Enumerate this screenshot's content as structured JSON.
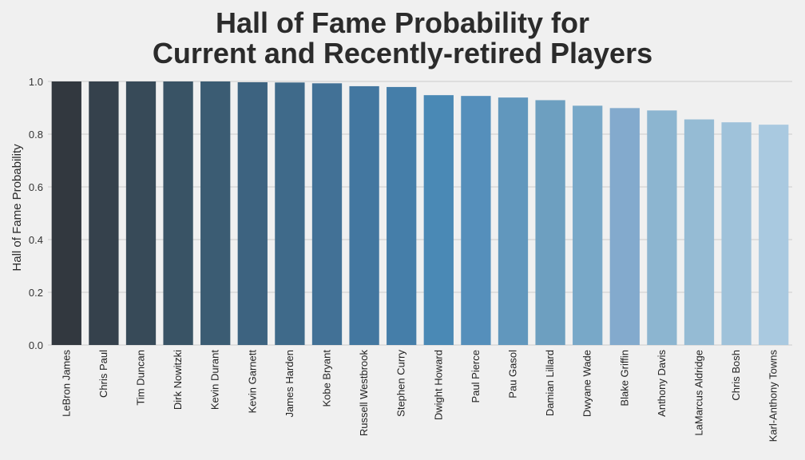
{
  "chart_data": {
    "type": "bar",
    "title_lines": [
      "Hall of Fame Probability for",
      "Current and Recently-retired Players"
    ],
    "xlabel": "",
    "ylabel": "Hall of Fame Probability",
    "ylim": [
      0,
      1.0
    ],
    "yticks": [
      "0.0",
      "0.2",
      "0.4",
      "0.6",
      "0.8",
      "1.0"
    ],
    "ytick_values": [
      0,
      0.2,
      0.4,
      0.6,
      0.8,
      1.0
    ],
    "grid": true,
    "legend": "none",
    "categories": [
      "LeBron James",
      "Chris Paul",
      "Tim Duncan",
      "Dirk Nowitzki",
      "Kevin Durant",
      "Kevin Garnett",
      "James Harden",
      "Kobe Bryant",
      "Russell Westbrook",
      "Stephen Curry",
      "Dwight Howard",
      "Paul Pierce",
      "Pau Gasol",
      "Damian Lillard",
      "Dwyane Wade",
      "Blake Griffin",
      "Anthony Davis",
      "LaMarcus Aldridge",
      "Chris Bosh",
      "Karl-Anthony Towns"
    ],
    "values": [
      1.0,
      1.0,
      1.0,
      1.0,
      1.0,
      0.997,
      0.996,
      0.993,
      0.982,
      0.979,
      0.948,
      0.945,
      0.939,
      0.929,
      0.908,
      0.899,
      0.89,
      0.856,
      0.845,
      0.836
    ],
    "colors": [
      "#32383f",
      "#35414c",
      "#374a58",
      "#395365",
      "#3b5c73",
      "#3d6380",
      "#3f6a8a",
      "#427196",
      "#4377a0",
      "#457ea9",
      "#4a89b5",
      "#558fbb",
      "#6197bd",
      "#6d9fc0",
      "#78a8c8",
      "#83aacd",
      "#8cb5d0",
      "#95bbd4",
      "#9fc2da",
      "#a9c9e0"
    ]
  }
}
